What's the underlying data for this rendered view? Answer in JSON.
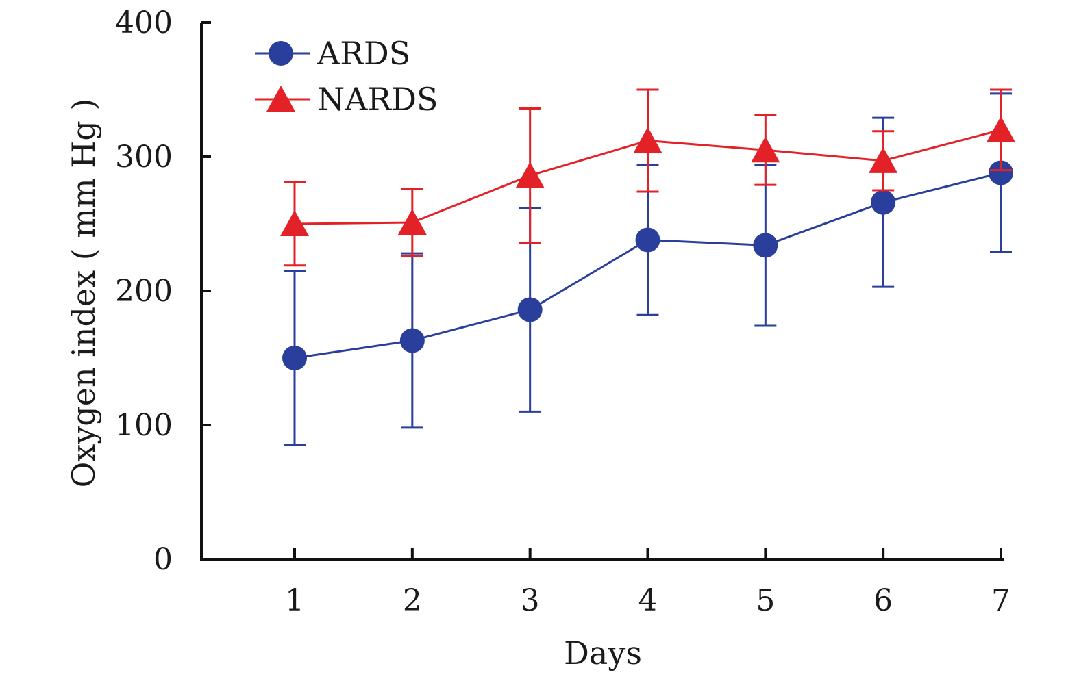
{
  "chart_data": {
    "type": "line",
    "title": "",
    "xlabel": "Days",
    "ylabel": "Oxygen index ( mm Hg )",
    "x": [
      1,
      2,
      3,
      4,
      5,
      6,
      7
    ],
    "x_tick_labels": [
      "1",
      "2",
      "3",
      "4",
      "5",
      "6",
      "7"
    ],
    "xlim": [
      0.2,
      7.0
    ],
    "ylim": [
      0,
      400
    ],
    "y_ticks": [
      0,
      100,
      200,
      300,
      400
    ],
    "y_tick_labels": [
      "0",
      "100",
      "200",
      "300",
      "400"
    ],
    "grid": false,
    "legend_position": "top-left",
    "series": [
      {
        "name": "ARDS",
        "color": "#2a3f9b",
        "marker": "circle",
        "values": [
          150,
          163,
          186,
          238,
          234,
          266,
          288
        ],
        "error": [
          65,
          65,
          76,
          56,
          60,
          63,
          59
        ]
      },
      {
        "name": "NARDS",
        "color": "#e32228",
        "marker": "triangle",
        "values": [
          250,
          251,
          286,
          312,
          305,
          297,
          320
        ],
        "error": [
          31,
          25,
          50,
          38,
          26,
          22,
          30
        ]
      }
    ]
  }
}
